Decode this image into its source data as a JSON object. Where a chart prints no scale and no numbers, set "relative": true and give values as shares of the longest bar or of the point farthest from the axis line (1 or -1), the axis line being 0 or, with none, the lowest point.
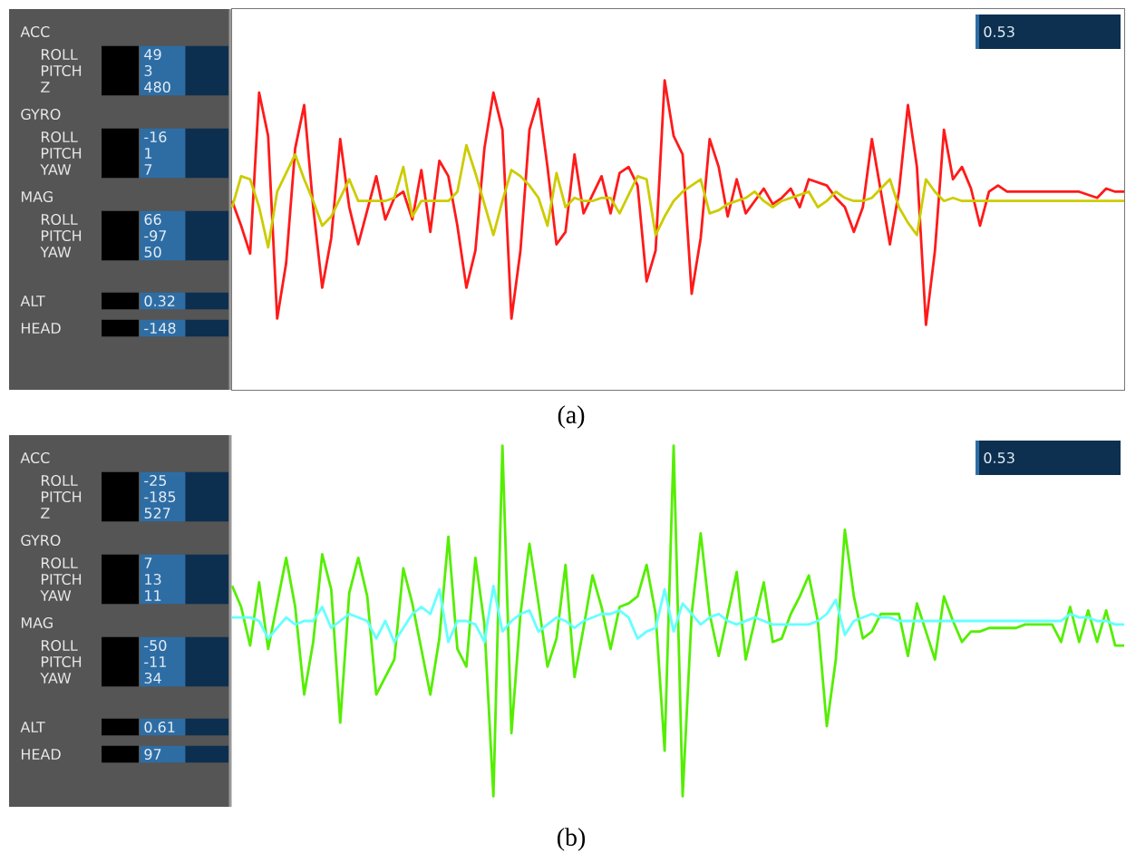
{
  "chart_data": [
    {
      "type": "other",
      "annotations": [
        "ACC",
        "GYRO",
        "MAG"
      ],
      "categories": [
        "ROLL",
        "PITCH",
        "Z",
        "ROLL",
        "PITCH",
        "YAW",
        "ROLL",
        "PITCH",
        "YAW",
        "ALT",
        "HEAD"
      ],
      "values": [
        49,
        3,
        480,
        -16,
        1,
        7,
        66,
        -97,
        50,
        0.32,
        -148
      ],
      "data_labels": true
    },
    {
      "type": "line",
      "relative": true,
      "tick_labels": false,
      "annotations": [
        "0.53",
        "(a)"
      ],
      "categories": [
        null,
        null,
        null,
        null,
        null,
        null,
        null,
        null,
        null,
        null,
        null,
        null,
        null,
        null,
        null,
        null,
        null,
        null,
        null,
        null,
        null,
        null,
        null,
        null,
        null,
        null,
        null,
        null,
        null,
        null,
        null,
        null,
        null,
        null,
        null,
        null,
        null,
        null,
        null,
        null,
        null,
        null,
        null,
        null,
        null,
        null,
        null,
        null,
        null,
        null,
        null,
        null,
        null,
        null,
        null,
        null,
        null,
        null,
        null,
        null,
        null,
        null,
        null,
        null,
        null,
        null,
        null,
        null,
        null,
        null,
        null,
        null,
        null,
        null,
        null,
        null,
        null,
        null,
        null,
        null,
        null,
        null,
        null,
        null,
        null,
        null,
        null,
        null,
        null,
        null,
        null,
        null,
        null,
        null,
        null,
        null,
        null,
        null,
        null,
        null
      ],
      "series": [
        {
          "color": "#ff1a1a",
          "values": [
            0.61,
            0.53,
            0.44,
            0.96,
            0.82,
            0.23,
            0.41,
            0.78,
            0.92,
            0.59,
            0.33,
            0.49,
            0.81,
            0.59,
            0.47,
            0.58,
            0.69,
            0.55,
            0.62,
            0.64,
            0.55,
            0.71,
            0.51,
            0.74,
            0.69,
            0.53,
            0.33,
            0.45,
            0.78,
            0.96,
            0.84,
            0.23,
            0.45,
            0.84,
            0.94,
            0.72,
            0.47,
            0.51,
            0.76,
            0.57,
            0.63,
            0.69,
            0.57,
            0.7,
            0.72,
            0.66,
            0.35,
            0.45,
            1.0,
            0.82,
            0.76,
            0.31,
            0.49,
            0.81,
            0.72,
            0.56,
            0.68,
            0.57,
            0.61,
            0.65,
            0.6,
            0.62,
            0.65,
            0.59,
            0.68,
            0.67,
            0.66,
            0.62,
            0.59,
            0.51,
            0.59,
            0.81,
            0.64,
            0.47,
            0.64,
            0.92,
            0.72,
            0.21,
            0.45,
            0.84,
            0.68,
            0.72,
            0.65,
            0.53,
            0.64,
            0.66,
            0.64,
            0.64,
            0.64,
            0.64,
            0.64,
            0.64,
            0.64,
            0.64,
            0.64,
            0.63,
            0.62,
            0.65,
            0.64,
            0.64
          ]
        },
        {
          "color": "#cccc00",
          "values": [
            0.59,
            0.69,
            0.68,
            0.59,
            0.46,
            0.64,
            0.7,
            0.76,
            0.68,
            0.61,
            0.53,
            0.56,
            0.62,
            0.68,
            0.61,
            0.61,
            0.61,
            0.61,
            0.62,
            0.72,
            0.56,
            0.61,
            0.61,
            0.61,
            0.61,
            0.64,
            0.79,
            0.7,
            0.6,
            0.5,
            0.61,
            0.71,
            0.69,
            0.66,
            0.62,
            0.53,
            0.7,
            0.59,
            0.62,
            0.61,
            0.61,
            0.62,
            0.62,
            0.57,
            0.63,
            0.69,
            0.68,
            0.5,
            0.56,
            0.61,
            0.64,
            0.66,
            0.68,
            0.57,
            0.58,
            0.6,
            0.61,
            0.62,
            0.64,
            0.61,
            0.59,
            0.61,
            0.62,
            0.63,
            0.64,
            0.59,
            0.61,
            0.64,
            0.62,
            0.61,
            0.61,
            0.62,
            0.65,
            0.68,
            0.59,
            0.54,
            0.5,
            0.68,
            0.64,
            0.61,
            0.62,
            0.61,
            0.61,
            0.61,
            0.61,
            0.61,
            0.61,
            0.61,
            0.61,
            0.61,
            0.61,
            0.61,
            0.61,
            0.61,
            0.61,
            0.61,
            0.61,
            0.61,
            0.61,
            0.61
          ]
        }
      ]
    },
    {
      "type": "other",
      "annotations": [
        "ACC",
        "GYRO",
        "MAG"
      ],
      "categories": [
        "ROLL",
        "PITCH",
        "Z",
        "ROLL",
        "PITCH",
        "YAW",
        "ROLL",
        "PITCH",
        "YAW",
        "ALT",
        "HEAD"
      ],
      "values": [
        -25,
        -185,
        527,
        7,
        13,
        11,
        -50,
        -11,
        34,
        0.61,
        97
      ],
      "data_labels": true
    },
    {
      "type": "line",
      "relative": true,
      "tick_labels": false,
      "annotations": [
        "0.53",
        "(b)"
      ],
      "categories": [
        null,
        null,
        null,
        null,
        null,
        null,
        null,
        null,
        null,
        null,
        null,
        null,
        null,
        null,
        null,
        null,
        null,
        null,
        null,
        null,
        null,
        null,
        null,
        null,
        null,
        null,
        null,
        null,
        null,
        null,
        null,
        null,
        null,
        null,
        null,
        null,
        null,
        null,
        null,
        null,
        null,
        null,
        null,
        null,
        null,
        null,
        null,
        null,
        null,
        null,
        null,
        null,
        null,
        null,
        null,
        null,
        null,
        null,
        null,
        null,
        null,
        null,
        null,
        null,
        null,
        null,
        null,
        null,
        null,
        null,
        null,
        null,
        null,
        null,
        null,
        null,
        null,
        null,
        null,
        null,
        null,
        null,
        null,
        null,
        null,
        null,
        null,
        null,
        null,
        null,
        null,
        null,
        null,
        null,
        null,
        null,
        null,
        null,
        null,
        null
      ],
      "series": [
        {
          "color": "#55ee00",
          "values": [
            0.6,
            0.54,
            0.43,
            0.61,
            0.42,
            0.55,
            0.68,
            0.54,
            0.29,
            0.44,
            0.69,
            0.59,
            0.21,
            0.58,
            0.68,
            0.57,
            0.29,
            0.34,
            0.39,
            0.65,
            0.55,
            0.42,
            0.29,
            0.45,
            0.74,
            0.42,
            0.37,
            0.68,
            0.49,
            0.0,
            1.0,
            0.18,
            0.52,
            0.72,
            0.55,
            0.37,
            0.45,
            0.66,
            0.34,
            0.48,
            0.63,
            0.54,
            0.42,
            0.54,
            0.55,
            0.57,
            0.66,
            0.52,
            0.13,
            1.0,
            0.0,
            0.52,
            0.75,
            0.52,
            0.4,
            0.52,
            0.64,
            0.39,
            0.5,
            0.61,
            0.44,
            0.45,
            0.52,
            0.57,
            0.63,
            0.5,
            0.2,
            0.39,
            0.76,
            0.57,
            0.45,
            0.47,
            0.52,
            0.52,
            0.52,
            0.4,
            0.55,
            0.47,
            0.39,
            0.57,
            0.5,
            0.44,
            0.47,
            0.47,
            0.48,
            0.48,
            0.48,
            0.48,
            0.49,
            0.49,
            0.49,
            0.49,
            0.44,
            0.54,
            0.44,
            0.53,
            0.44,
            0.53,
            0.43,
            0.43
          ]
        },
        {
          "color": "#66ffff",
          "values": [
            0.51,
            0.51,
            0.51,
            0.5,
            0.45,
            0.48,
            0.51,
            0.49,
            0.5,
            0.5,
            0.54,
            0.48,
            0.5,
            0.52,
            0.51,
            0.5,
            0.45,
            0.5,
            0.44,
            0.48,
            0.52,
            0.54,
            0.52,
            0.59,
            0.44,
            0.5,
            0.5,
            0.49,
            0.44,
            0.6,
            0.47,
            0.5,
            0.52,
            0.53,
            0.47,
            0.49,
            0.51,
            0.5,
            0.48,
            0.5,
            0.51,
            0.52,
            0.52,
            0.53,
            0.51,
            0.45,
            0.47,
            0.48,
            0.59,
            0.47,
            0.55,
            0.52,
            0.49,
            0.51,
            0.52,
            0.5,
            0.49,
            0.5,
            0.51,
            0.5,
            0.49,
            0.49,
            0.49,
            0.49,
            0.49,
            0.5,
            0.52,
            0.56,
            0.46,
            0.5,
            0.51,
            0.52,
            0.51,
            0.51,
            0.5,
            0.5,
            0.5,
            0.5,
            0.5,
            0.5,
            0.5,
            0.5,
            0.5,
            0.5,
            0.5,
            0.5,
            0.5,
            0.5,
            0.5,
            0.5,
            0.5,
            0.5,
            0.5,
            0.52,
            0.51,
            0.51,
            0.5,
            0.5,
            0.49,
            0.49
          ]
        }
      ]
    }
  ]
}
